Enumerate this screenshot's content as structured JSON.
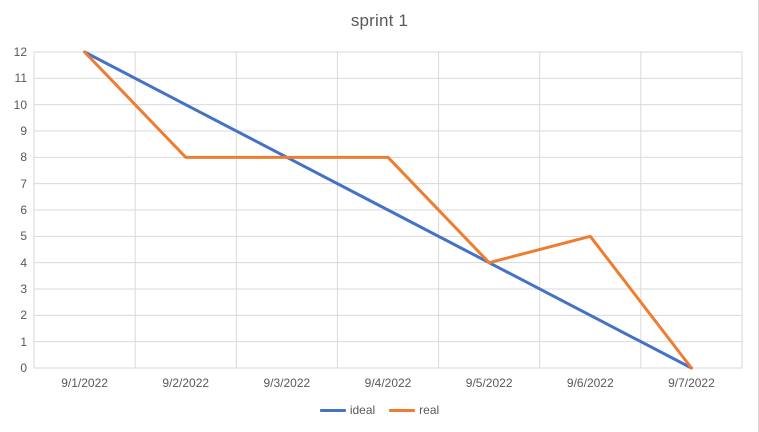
{
  "chart": {
    "title": "sprint 1"
  },
  "chart_data": {
    "type": "line",
    "title": "sprint 1",
    "categories": [
      "9/1/2022",
      "9/2/2022",
      "9/3/2022",
      "9/4/2022",
      "9/5/2022",
      "9/6/2022",
      "9/7/2022"
    ],
    "series": [
      {
        "name": "ideal",
        "color": "#4472C4",
        "values": [
          12,
          10,
          8,
          6,
          4,
          2,
          0
        ]
      },
      {
        "name": "real",
        "color": "#ED7D31",
        "values": [
          12,
          8,
          8,
          8,
          4,
          5,
          0
        ]
      }
    ],
    "xlabel": "",
    "ylabel": "",
    "ylim": [
      0,
      12
    ],
    "ytick_step": 1,
    "grid": true,
    "legend_position": "bottom-center",
    "styles": {
      "gridline_color": "#D9D9D9",
      "plot_border_color": "#D9D9D9",
      "axis_label_color": "#595959",
      "title_color": "#595959",
      "background": "#FFFFFF"
    }
  }
}
